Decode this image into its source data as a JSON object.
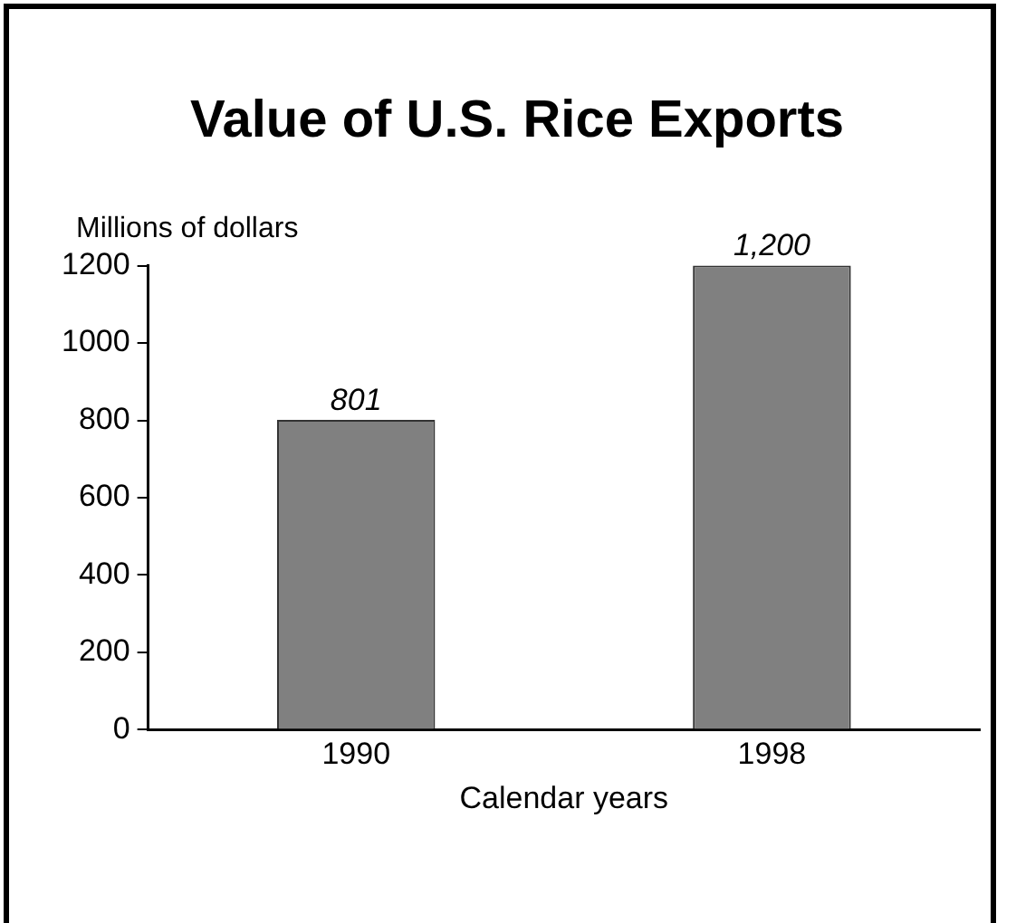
{
  "chart_data": {
    "type": "bar",
    "title": "Value of U.S. Rice Exports",
    "ylabel": "Millions of dollars",
    "xlabel": "Calendar years",
    "categories": [
      "1990",
      "1998"
    ],
    "values": [
      801,
      1200
    ],
    "value_labels": [
      "801",
      "1,200"
    ],
    "color": "#808080",
    "ylim": [
      0,
      1200
    ],
    "yticks": [
      0,
      200,
      400,
      600,
      800,
      1000,
      1200
    ],
    "grid": false,
    "legend": false
  }
}
